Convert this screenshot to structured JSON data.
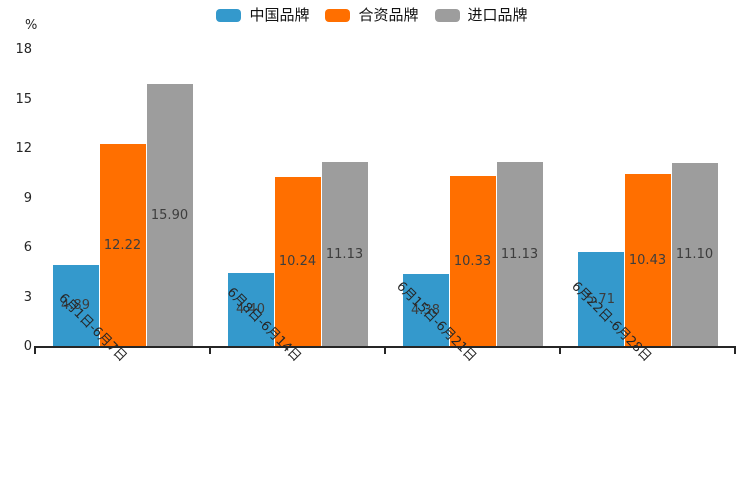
{
  "y_axis": {
    "unit": "%",
    "ticks": [
      18,
      15,
      12,
      9,
      6,
      3,
      0
    ]
  },
  "chart_data": {
    "type": "bar",
    "title": "",
    "xlabel": "",
    "ylabel": "%",
    "ylim": [
      0,
      18
    ],
    "grid": false,
    "legend_position": "top",
    "value_labels": "inside-center, 2 decimals",
    "categories": [
      "6月1日-6月7日",
      "6月8日-6月14日",
      "6月15日-6月21日",
      "6月22日-6月28日"
    ],
    "series": [
      {
        "name": "中国品牌",
        "color": "#3499cc",
        "values": [
          4.89,
          4.4,
          4.38,
          5.71
        ]
      },
      {
        "name": "合资品牌",
        "color": "#ff6f00",
        "values": [
          12.22,
          10.24,
          10.33,
          10.43
        ]
      },
      {
        "name": "进口品牌",
        "color": "#9d9d9d",
        "values": [
          15.9,
          11.13,
          11.13,
          11.1
        ]
      }
    ],
    "colors": {
      "axis": "#262626",
      "value_label": "#3d3d3d",
      "background": "#ffffff"
    }
  }
}
